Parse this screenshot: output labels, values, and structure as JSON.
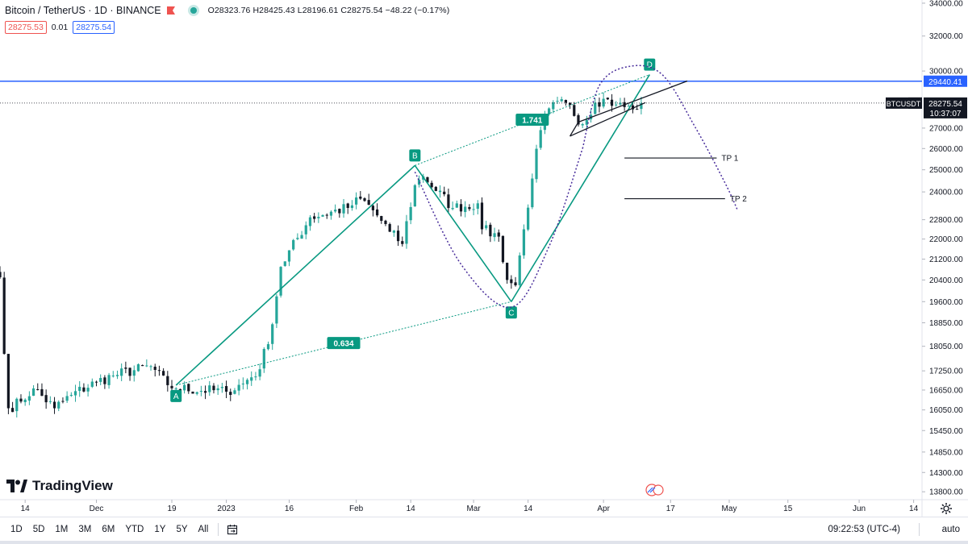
{
  "header": {
    "symbol": "Bitcoin / TetherUS · 1D · BINANCE",
    "ohlc": "O28323.76 H28425.43 L28196.61 C28275.54 −48.22 (−0.17%)"
  },
  "pills": {
    "sell": "28275.53",
    "spread": "0.01",
    "buy": "28275.54"
  },
  "brand": {
    "name": "TradingView"
  },
  "colors": {
    "up": "#26a69a",
    "down": "#131722",
    "pattern": "#089981",
    "dotted": "#089981",
    "arc": "#4a2f9c",
    "resistance": "#2962ff",
    "price_line": "#131722",
    "axis_text": "#131722"
  },
  "chart_data": {
    "type": "candlestick",
    "symbol": "BTCUSDT",
    "timeframe": "1D",
    "x_range": [
      "2022-11-08",
      "2023-06-16"
    ],
    "y_range": [
      13600,
      34200
    ],
    "y_scale": "log",
    "y_ticks": [
      "34000.00",
      "32000.00",
      "30000.00",
      "27000.00",
      "26000.00",
      "25000.00",
      "24000.00",
      "22800.00",
      "22000.00",
      "21200.00",
      "20400.00",
      "19600.00",
      "18850.00",
      "18050.00",
      "17250.00",
      "16650.00",
      "16050.00",
      "15450.00",
      "14850.00",
      "14300.00",
      "13800.00"
    ],
    "x_ticks": [
      {
        "date": "2022-11-14",
        "label": "14"
      },
      {
        "date": "2022-12-01",
        "label": "Dec"
      },
      {
        "date": "2022-12-19",
        "label": "19"
      },
      {
        "date": "2023-01-01",
        "label": "2023"
      },
      {
        "date": "2023-01-16",
        "label": "16"
      },
      {
        "date": "2023-02-01",
        "label": "Feb"
      },
      {
        "date": "2023-02-14",
        "label": "14"
      },
      {
        "date": "2023-03-01",
        "label": "Mar"
      },
      {
        "date": "2023-03-14",
        "label": "14"
      },
      {
        "date": "2023-04-01",
        "label": "Apr"
      },
      {
        "date": "2023-04-17",
        "label": "17"
      },
      {
        "date": "2023-05-01",
        "label": "May"
      },
      {
        "date": "2023-05-15",
        "label": "15"
      },
      {
        "date": "2023-06-01",
        "label": "Jun"
      },
      {
        "date": "2023-06-14",
        "label": "14"
      }
    ],
    "price_anchors": [
      {
        "date": "2022-11-08",
        "price": 20500
      },
      {
        "date": "2022-11-09",
        "price": 17800
      },
      {
        "date": "2022-11-10",
        "price": 16100
      },
      {
        "date": "2022-11-13",
        "price": 16300
      },
      {
        "date": "2022-11-16",
        "price": 16700
      },
      {
        "date": "2022-11-21",
        "price": 16100
      },
      {
        "date": "2022-11-25",
        "price": 16500
      },
      {
        "date": "2022-12-01",
        "price": 16900
      },
      {
        "date": "2022-12-05",
        "price": 17100
      },
      {
        "date": "2022-12-14",
        "price": 17400
      },
      {
        "date": "2022-12-18",
        "price": 16800
      },
      {
        "date": "2022-12-20",
        "price": 16700
      },
      {
        "date": "2023-01-01",
        "price": 16600
      },
      {
        "date": "2023-01-05",
        "price": 16850
      },
      {
        "date": "2023-01-09",
        "price": 17300
      },
      {
        "date": "2023-01-12",
        "price": 18800
      },
      {
        "date": "2023-01-14",
        "price": 20900
      },
      {
        "date": "2023-01-21",
        "price": 22900
      },
      {
        "date": "2023-01-30",
        "price": 23300
      },
      {
        "date": "2023-02-02",
        "price": 23700
      },
      {
        "date": "2023-02-05",
        "price": 23200
      },
      {
        "date": "2023-02-09",
        "price": 22300
      },
      {
        "date": "2023-02-12",
        "price": 21800
      },
      {
        "date": "2023-02-15",
        "price": 24300
      },
      {
        "date": "2023-02-17",
        "price": 24700
      },
      {
        "date": "2023-02-24",
        "price": 23300
      },
      {
        "date": "2023-03-02",
        "price": 23500
      },
      {
        "date": "2023-03-03",
        "price": 22400
      },
      {
        "date": "2023-03-07",
        "price": 22100
      },
      {
        "date": "2023-03-09",
        "price": 20400
      },
      {
        "date": "2023-03-11",
        "price": 20200
      },
      {
        "date": "2023-03-13",
        "price": 22400
      },
      {
        "date": "2023-03-15",
        "price": 24600
      },
      {
        "date": "2023-03-17",
        "price": 26900
      },
      {
        "date": "2023-03-19",
        "price": 28000
      },
      {
        "date": "2023-03-23",
        "price": 28300
      },
      {
        "date": "2023-03-27",
        "price": 27200
      },
      {
        "date": "2023-03-30",
        "price": 28300
      },
      {
        "date": "2023-04-01",
        "price": 28500
      },
      {
        "date": "2023-04-04",
        "price": 28200
      },
      {
        "date": "2023-04-08",
        "price": 27950
      },
      {
        "date": "2023-04-10",
        "price": 28275
      }
    ],
    "last_close": 28275.54,
    "harmonic_pattern": {
      "points": [
        {
          "label": "A",
          "date": "2022-12-20",
          "price": 16800
        },
        {
          "label": "B",
          "date": "2023-02-15",
          "price": 25200
        },
        {
          "label": "C",
          "date": "2023-03-10",
          "price": 19600
        },
        {
          "label": "D",
          "date": "2023-04-12",
          "price": 29800
        }
      ],
      "ratios": [
        {
          "value": "0.634",
          "from": "A",
          "to": "C"
        },
        {
          "value": "1.741",
          "from": "B",
          "to": "D"
        }
      ]
    },
    "curve": {
      "lower_arc_points": [
        {
          "date": "2023-02-15",
          "price": 24900
        },
        {
          "date": "2023-02-26",
          "price": 21000
        },
        {
          "date": "2023-03-10",
          "price": 19400
        },
        {
          "date": "2023-03-19",
          "price": 21700
        },
        {
          "date": "2023-03-27",
          "price": 26000
        }
      ],
      "upper_arc_points": [
        {
          "date": "2023-03-27",
          "price": 26000
        },
        {
          "date": "2023-03-31",
          "price": 29200
        },
        {
          "date": "2023-04-07",
          "price": 30250
        },
        {
          "date": "2023-04-15",
          "price": 29800
        },
        {
          "date": "2023-04-23",
          "price": 27000
        },
        {
          "date": "2023-04-30",
          "price": 24400
        },
        {
          "date": "2023-05-03",
          "price": 23200
        }
      ]
    },
    "triangle": [
      {
        "date": "2023-03-24",
        "price": 26600
      },
      {
        "date": "2023-04-11",
        "price": 28300
      },
      {
        "date": "2023-04-21",
        "price": 29450
      },
      {
        "date": "2023-03-26",
        "price": 27300
      }
    ],
    "targets": [
      {
        "label": "TP 1",
        "price": 25550,
        "from": "2023-04-06",
        "to": "2023-04-28"
      },
      {
        "label": "TP 2",
        "price": 23700,
        "from": "2023-04-06",
        "to": "2023-04-30"
      }
    ],
    "resistance": {
      "price": 29440.41,
      "label": "29440.41"
    },
    "price_label": {
      "ticker": "BTCUSDT",
      "price": "28275.54",
      "countdown": "10:37:07"
    }
  },
  "bottom_bar": {
    "timeframes": [
      "1D",
      "5D",
      "1M",
      "3M",
      "6M",
      "YTD",
      "1Y",
      "5Y",
      "All"
    ],
    "clock": "09:22:53 (UTC-4)",
    "scale_mode": "auto"
  }
}
